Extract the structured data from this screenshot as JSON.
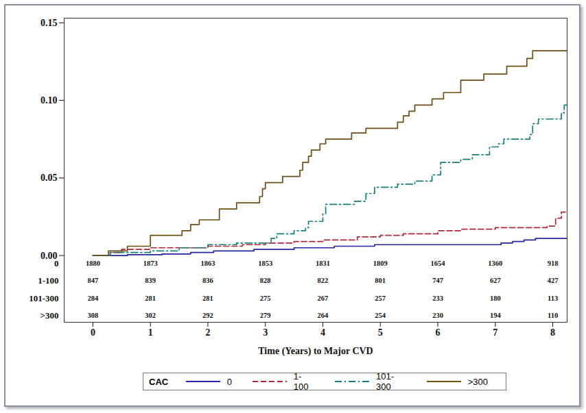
{
  "chart_data": {
    "type": "line",
    "xlabel": "Time (Years) to Major CVD",
    "legend_title": "CAC",
    "legend": "bottom",
    "grid": false,
    "xlim": [
      -0.5,
      8.25
    ],
    "xticks": [
      0,
      1,
      2,
      3,
      4,
      5,
      6,
      7,
      8
    ],
    "ylim": [
      -0.043,
      0.153
    ],
    "yticks": [
      {
        "value": 0,
        "label": "0.00"
      },
      {
        "value": 0.05,
        "label": "0.05"
      },
      {
        "value": 0.1,
        "label": "0.10"
      },
      {
        "value": 0.15,
        "label": "0.15"
      }
    ],
    "series": [
      {
        "name": "0",
        "color": "#2323a8",
        "line_style": "solid",
        "x": [
          0,
          0.6,
          1.2,
          1.7,
          2.1,
          2.8,
          3.5,
          4.2,
          4.9,
          7.1,
          7.3,
          7.5,
          7.7,
          8.25
        ],
        "values": [
          0,
          0.0005,
          0.001,
          0.002,
          0.003,
          0.004,
          0.005,
          0.006,
          0.007,
          0.008,
          0.009,
          0.01,
          0.011,
          0.011
        ],
        "at_risk": [
          1880,
          1873,
          1863,
          1853,
          1831,
          1809,
          1654,
          1360,
          918
        ]
      },
      {
        "name": "1-100",
        "color": "#b5253a",
        "line_style": "dashed",
        "x": [
          0,
          0.3,
          0.5,
          1.0,
          2.0,
          2.6,
          3.0,
          3.5,
          4.0,
          4.6,
          5.0,
          5.4,
          6.0,
          6.4,
          7.0,
          7.9,
          8.05,
          8.15,
          8.25
        ],
        "values": [
          0,
          0.002,
          0.004,
          0.005,
          0.006,
          0.007,
          0.008,
          0.009,
          0.01,
          0.012,
          0.013,
          0.014,
          0.016,
          0.017,
          0.018,
          0.019,
          0.024,
          0.028,
          0.028
        ],
        "at_risk": [
          847,
          839,
          836,
          828,
          822,
          801,
          747,
          627,
          427
        ]
      },
      {
        "name": "101-300",
        "color": "#117f80",
        "line_style": "dashdot",
        "x": [
          0,
          0.3,
          1.0,
          1.5,
          2.0,
          2.5,
          3.1,
          3.2,
          3.5,
          3.7,
          3.75,
          4.0,
          4.05,
          4.55,
          4.75,
          4.9,
          5.3,
          5.6,
          5.9,
          6.05,
          6.4,
          6.6,
          6.9,
          7.05,
          7.15,
          7.6,
          7.65,
          7.75,
          8.15,
          8.2,
          8.25
        ],
        "values": [
          0,
          0.002,
          0.003,
          0.005,
          0.007,
          0.008,
          0.011,
          0.014,
          0.016,
          0.018,
          0.022,
          0.027,
          0.033,
          0.035,
          0.04,
          0.044,
          0.046,
          0.048,
          0.052,
          0.06,
          0.062,
          0.065,
          0.07,
          0.072,
          0.075,
          0.078,
          0.085,
          0.088,
          0.092,
          0.097,
          0.097
        ],
        "at_risk": [
          284,
          281,
          281,
          275,
          267,
          257,
          233,
          180,
          113
        ]
      },
      {
        "name": ">300",
        "color": "#6e4c10",
        "line_style": "solid",
        "x": [
          0,
          0.27,
          0.6,
          1.0,
          1.55,
          1.7,
          1.85,
          2.2,
          2.5,
          2.9,
          2.95,
          3.0,
          3.3,
          3.6,
          3.65,
          3.75,
          3.8,
          3.95,
          4.05,
          4.5,
          4.75,
          5.3,
          5.4,
          5.5,
          5.6,
          5.9,
          6.1,
          6.4,
          6.8,
          7.2,
          7.55,
          7.65,
          8.25
        ],
        "values": [
          0,
          0.003,
          0.006,
          0.013,
          0.016,
          0.02,
          0.023,
          0.03,
          0.034,
          0.038,
          0.043,
          0.047,
          0.051,
          0.055,
          0.06,
          0.064,
          0.068,
          0.072,
          0.075,
          0.079,
          0.082,
          0.086,
          0.09,
          0.093,
          0.097,
          0.101,
          0.105,
          0.113,
          0.117,
          0.122,
          0.127,
          0.132,
          0.132
        ],
        "at_risk": [
          308,
          302,
          292,
          279,
          264,
          254,
          230,
          194,
          110
        ]
      }
    ]
  }
}
